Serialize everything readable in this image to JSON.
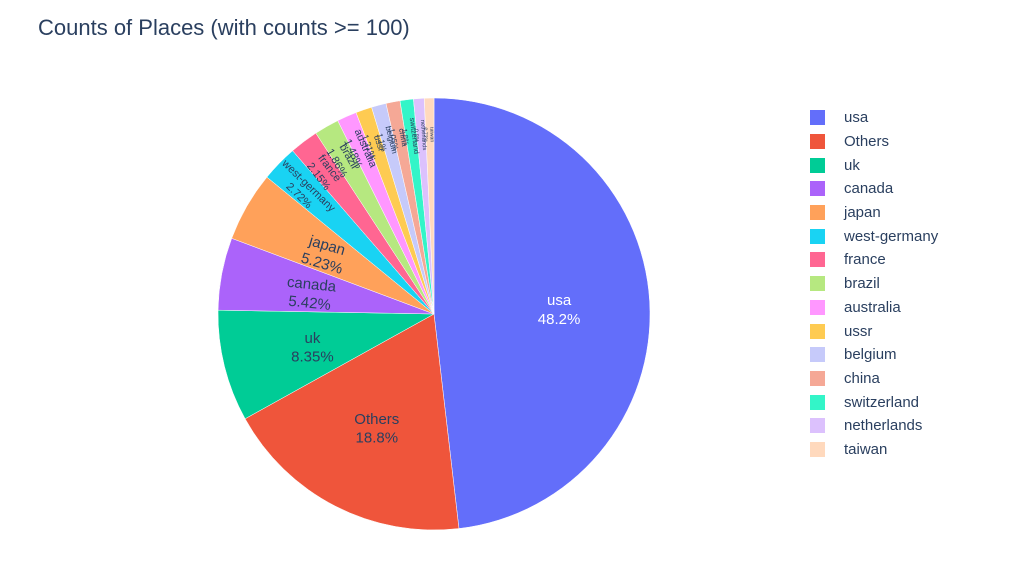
{
  "chart_data": {
    "type": "pie",
    "title": "Counts of Places (with counts >= 100)",
    "legend_position": "right",
    "slices": [
      {
        "label": "usa",
        "percent": 48.2,
        "text": "48.2%",
        "color": "#636efa"
      },
      {
        "label": "Others",
        "percent": 18.8,
        "text": "18.8%",
        "color": "#ef553b"
      },
      {
        "label": "uk",
        "percent": 8.35,
        "text": "8.35%",
        "color": "#00cc96"
      },
      {
        "label": "canada",
        "percent": 5.42,
        "text": "5.42%",
        "color": "#ab63fa"
      },
      {
        "label": "japan",
        "percent": 5.23,
        "text": "5.23%",
        "color": "#ffa15a"
      },
      {
        "label": "west-germany",
        "percent": 2.72,
        "text": "2.72%",
        "color": "#19d3f3"
      },
      {
        "label": "france",
        "percent": 2.15,
        "text": "2.15%",
        "color": "#ff6692"
      },
      {
        "label": "brazil",
        "percent": 1.86,
        "text": "1.86%",
        "color": "#b6e880"
      },
      {
        "label": "australia",
        "percent": 1.48,
        "text": "1.48%",
        "color": "#ff97ff"
      },
      {
        "label": "ussr",
        "percent": 1.21,
        "text": "1.21%",
        "color": "#fecb52"
      },
      {
        "label": "belgium",
        "percent": 1.1,
        "text": "1.1%",
        "color": "#c6cafa"
      },
      {
        "label": "china",
        "percent": 1.05,
        "text": "1.05%",
        "color": "#f5a896"
      },
      {
        "label": "switzerland",
        "percent": 1.0,
        "text": "1.0%",
        "color": "#33f5c8"
      },
      {
        "label": "netherlands",
        "percent": 0.8,
        "text": "0.8%",
        "color": "#dcc1fd"
      },
      {
        "label": "taiwan",
        "percent": 0.72,
        "text": "0.72%",
        "color": "#ffd9bd"
      }
    ]
  }
}
